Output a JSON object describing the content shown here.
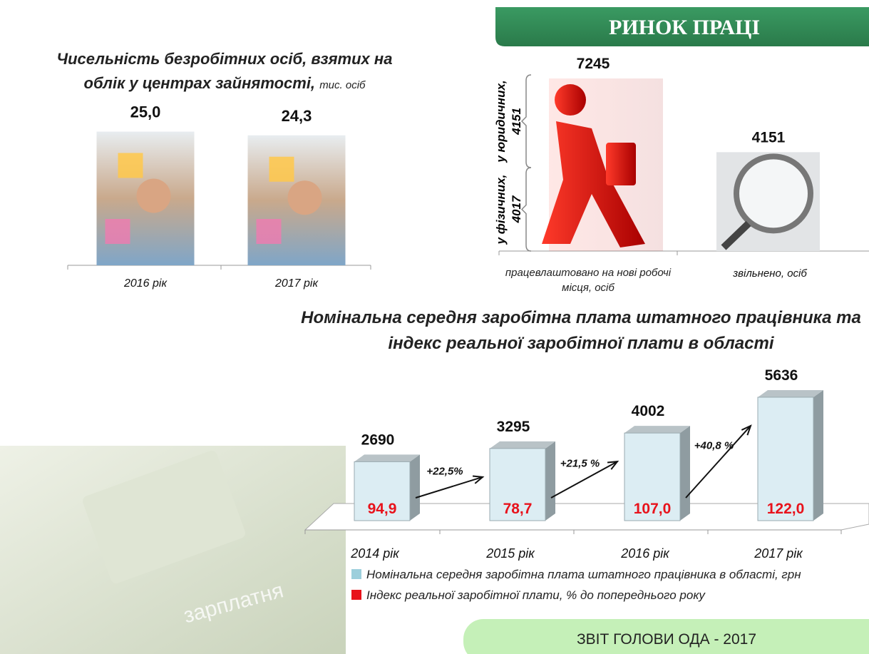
{
  "header": "РИНОК ПРАЦІ",
  "footer": "ЗВІТ ГОЛОВИ ОДА - 2017",
  "background_label": "зарплатня",
  "chart_data": [
    {
      "type": "bar",
      "title": "Чисельність безробітних осіб, взятих на облік у центрах зайнятості,",
      "subtitle": "тис. осіб",
      "categories": [
        "2016 рік",
        "2017 рік"
      ],
      "values": [
        25.0,
        24.3
      ],
      "value_labels": [
        "25,0",
        "24,3"
      ]
    },
    {
      "type": "bar",
      "categories": [
        "працевлаштовано на нові робочі місця, осіб",
        "звільнено, осіб"
      ],
      "values": [
        7245,
        4151
      ],
      "breakdown": [
        {
          "label": "у юридичних,",
          "value": 4151
        },
        {
          "label": "у фізичних,",
          "value": 4017
        }
      ]
    },
    {
      "type": "bar",
      "title": "Номінальна середня заробітна плата штатного працівника та індекс реальної заробітної плати в області",
      "categories": [
        "2014 рік",
        "2015 рік",
        "2016 рік",
        "2017 рік"
      ],
      "series": [
        {
          "name": "Номінальна  середня заробітна плата штатного працівника в області, грн",
          "color": "#9ccfdc",
          "values": [
            2690,
            3295,
            4002,
            5636
          ]
        },
        {
          "name": "Індекс реальної заробітної плати, % до попереднього року",
          "color": "#e8121b",
          "values": [
            94.9,
            78.7,
            107.0,
            122.0
          ],
          "value_labels": [
            "94,9",
            "78,7",
            "107,0",
            "122,0"
          ]
        }
      ],
      "annotations": [
        "+22,5%",
        "+21,5 %",
        "+40,8 %"
      ]
    }
  ]
}
